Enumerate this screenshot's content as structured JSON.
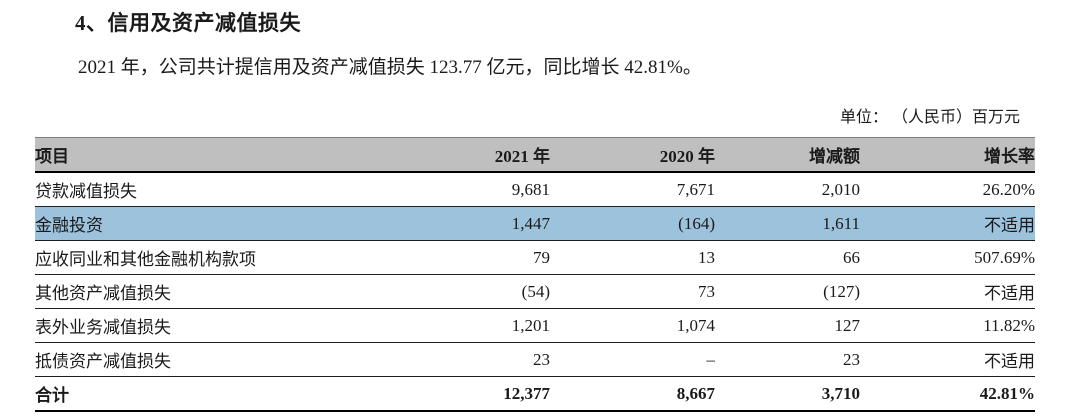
{
  "document": {
    "section_title": "4、信用及资产减值损失",
    "paragraph": "2021 年，公司共计提信用及资产减值损失 123.77 亿元，同比增长 42.81%。",
    "unit_note": "单位： （人民币）百万元"
  },
  "table": {
    "headers": {
      "item": "项目",
      "y2021": "2021 年",
      "y2020": "2020 年",
      "change": "增减额",
      "growth": "增长率"
    },
    "rows": [
      {
        "label": "贷款减值损失",
        "y2021": "9,681",
        "y2020": "7,671",
        "change": "2,010",
        "growth": "26.20%"
      },
      {
        "label": "金融投资",
        "y2021": "1,447",
        "y2020": "(164)",
        "change": "1,611",
        "growth": "不适用"
      },
      {
        "label": "应收同业和其他金融机构款项",
        "y2021": "79",
        "y2020": "13",
        "change": "66",
        "growth": "507.69%"
      },
      {
        "label": "其他资产减值损失",
        "y2021": "(54)",
        "y2020": "73",
        "change": "(127)",
        "growth": "不适用"
      },
      {
        "label": "表外业务减值损失",
        "y2021": "1,201",
        "y2020": "1,074",
        "change": "127",
        "growth": "11.82%"
      },
      {
        "label": "抵债资产减值损失",
        "y2021": "23",
        "y2020": "–",
        "change": "23",
        "growth": "不适用"
      },
      {
        "label": "合计",
        "y2021": "12,377",
        "y2020": "8,667",
        "change": "3,710",
        "growth": "42.81%"
      }
    ],
    "colors": {
      "header_bg": "#bfbfbf",
      "highlight_bg": "#9cc2dc"
    }
  }
}
